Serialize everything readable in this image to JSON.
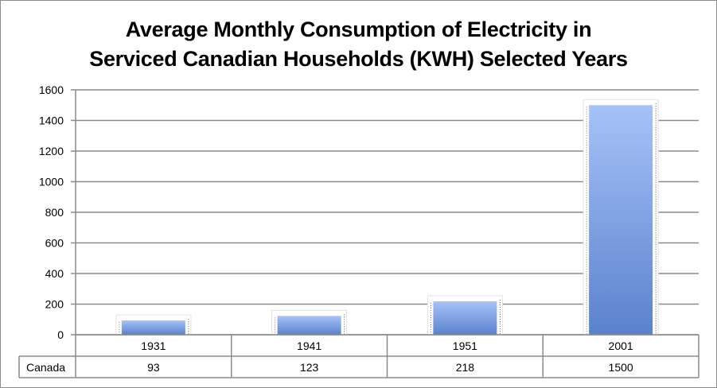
{
  "chart_data": {
    "type": "bar",
    "title_lines": [
      "Average Monthly Consumption of Electricity in",
      "Serviced Canadian Households (KWH) Selected Years"
    ],
    "categories": [
      "1931",
      "1941",
      "1951",
      "2001"
    ],
    "series": [
      {
        "name": "Canada",
        "values": [
          93,
          123,
          218,
          1500
        ]
      }
    ],
    "value_labels": [
      "93",
      "123",
      "218",
      "1500"
    ],
    "y_ticks": [
      "0",
      "200",
      "400",
      "600",
      "800",
      "1000",
      "1200",
      "1400",
      "1600"
    ],
    "ylim": [
      0,
      1600
    ],
    "grid": true,
    "data_table": true,
    "bar_color_top": "#a6c2f8",
    "bar_color_bottom": "#5a82cc"
  }
}
